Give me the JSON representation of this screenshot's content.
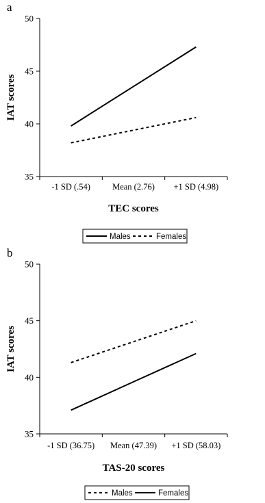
{
  "chart_data": [
    {
      "panel_label": "a",
      "type": "line",
      "categories": [
        "-1 SD (.54)",
        "Mean (2.76)",
        "+1 SD (4.98)"
      ],
      "series": [
        {
          "name": "Males",
          "values": [
            39.8,
            43.55,
            47.3
          ],
          "style": "solid"
        },
        {
          "name": "Females",
          "values": [
            38.2,
            39.4,
            40.6
          ],
          "style": "dashed"
        }
      ],
      "xlabel": "TEC scores",
      "ylabel": "IAT scores",
      "ylim": [
        35,
        50
      ],
      "yticks": [
        "35",
        "40",
        "45",
        "50"
      ],
      "legend": "bottom",
      "grid": false
    },
    {
      "panel_label": "b",
      "type": "line",
      "categories": [
        "-1 SD (36.75)",
        "Mean (47.39)",
        "+1 SD (58.03)"
      ],
      "series": [
        {
          "name": "Males",
          "values": [
            41.3,
            43.15,
            45.0
          ],
          "style": "dashed"
        },
        {
          "name": "Females",
          "values": [
            37.1,
            39.6,
            42.1
          ],
          "style": "solid"
        }
      ],
      "xlabel": "TAS-20 scores",
      "ylabel": "IAT scores",
      "ylim": [
        35,
        50
      ],
      "yticks": [
        "35",
        "40",
        "45",
        "50"
      ],
      "legend": "bottom",
      "grid": false
    }
  ]
}
